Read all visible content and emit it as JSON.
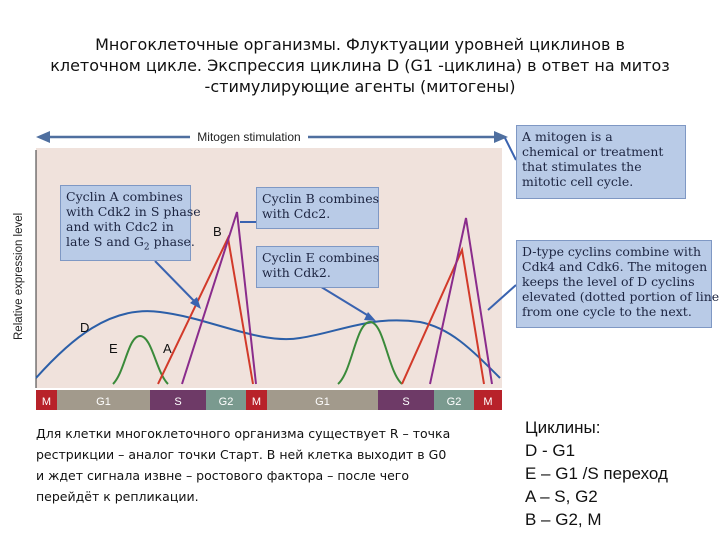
{
  "title": {
    "line1": "Многоклеточные организмы. Флуктуации уровней циклинов в",
    "line2": "клеточном цикле. Экспрессия циклина D (G1 -циклина) в ответ на митоз",
    "line3": "-стимулирующие агенты (митогены)"
  },
  "diagram": {
    "mitogen_label": "Mitogen stimulation",
    "y_axis_label": "Relative expression level",
    "curve_labels": {
      "B": "B",
      "D": "D",
      "E": "E",
      "A": "A"
    },
    "phases": [
      {
        "label": "M",
        "color": "#b8222a"
      },
      {
        "label": "G1",
        "color": "#a29a8c"
      },
      {
        "label": "S",
        "color": "#6e3a67"
      },
      {
        "label": "G2",
        "color": "#7a9a8f"
      },
      {
        "label": "M",
        "color": "#b8222a"
      },
      {
        "label": "G1",
        "color": "#a29a8c"
      },
      {
        "label": "S",
        "color": "#6e3a67"
      },
      {
        "label": "G2",
        "color": "#7a9a8f"
      },
      {
        "label": "M",
        "color": "#b8222a"
      }
    ],
    "colors": {
      "cyclin_A": "#d23a2a",
      "cyclin_B": "#8a2c8c",
      "cyclin_D": "#2c5fa8",
      "cyclin_E": "#3a8a3a",
      "callout_bg": "#b9cbe7",
      "plot_bg": "#f0e2dc"
    },
    "callouts": {
      "cyclin_a": {
        "l1": "Cyclin A combines",
        "l2": "with Cdk2 in S phase",
        "l3": "and with Cdc2 in",
        "l4": "late S and G",
        "l4_sub": "2",
        "l4_end": " phase."
      },
      "cyclin_b": {
        "l1": "Cyclin B combines",
        "l2": "with Cdc2."
      },
      "cyclin_e": {
        "l1": "Cyclin E combines",
        "l2": "with Cdk2."
      },
      "mitogen": {
        "l1": "A mitogen is a",
        "l2": "chemical or treatment",
        "l3": "that stimulates the",
        "l4": "mitotic cell cycle."
      },
      "d_type": {
        "l1": "D-type cyclins combine with",
        "l2": "Cdk4 and Cdk6. The mitogen",
        "l3": "keeps the level of D cyclins",
        "l4": "elevated (dotted portion of line)",
        "l5": "from one cycle to the next."
      }
    }
  },
  "bottom_text": {
    "line1": "Для клетки многоклеточного организма существует R – точка",
    "line2": "рестрикции – аналог точки Старт. В ней клетка выходит в G0",
    "line3": "и ждет сигнала извне – ростового фактора – после чего",
    "line4": "перейдёт к репликации."
  },
  "cyclins_list": {
    "heading": "Циклины:",
    "items": [
      "D -  G1",
      "E – G1 /S переход",
      "A – S, G2",
      "B – G2, M"
    ]
  }
}
